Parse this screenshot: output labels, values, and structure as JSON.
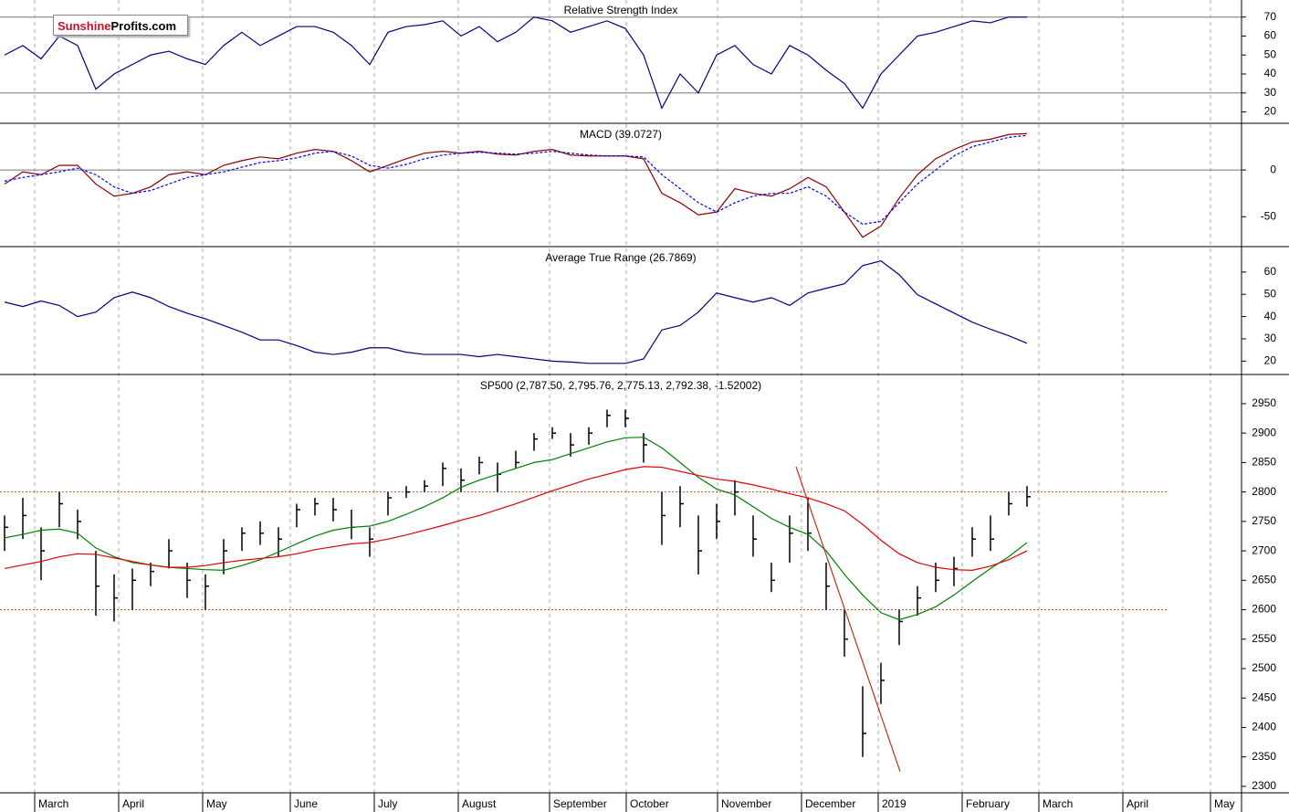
{
  "logo": {
    "brand": "Sunshine",
    "suffix": "Profits.com"
  },
  "chart_data": [
    {
      "type": "line",
      "title": "Relative Strength Index",
      "ylim": [
        14,
        79
      ],
      "yticks": [
        20,
        30,
        40,
        50,
        60,
        70
      ],
      "reference_lines": [
        70,
        30
      ],
      "series": [
        {
          "color": "#00007f",
          "values": [
            50,
            55,
            48,
            60,
            55,
            32,
            40,
            45,
            50,
            52,
            48,
            45,
            55,
            62,
            55,
            60,
            65,
            65,
            62,
            55,
            45,
            62,
            65,
            66,
            68,
            60,
            65,
            57,
            62,
            70,
            68,
            62,
            65,
            68,
            64,
            50,
            22,
            40,
            30,
            50,
            55,
            45,
            40,
            55,
            50,
            42,
            35,
            22,
            40,
            50,
            60,
            62,
            65,
            68,
            67,
            70,
            70
          ]
        }
      ]
    },
    {
      "type": "line",
      "title": "MACD (39.0727)",
      "ylim": [
        -82,
        49
      ],
      "yticks": [
        -50,
        0
      ],
      "reference_lines": [
        0
      ],
      "series": [
        {
          "color": "#8b0000",
          "values": [
            -15,
            -2,
            -5,
            5,
            5,
            -15,
            -28,
            -25,
            -18,
            -5,
            -2,
            -5,
            5,
            10,
            14,
            12,
            18,
            22,
            20,
            10,
            -2,
            5,
            12,
            18,
            20,
            18,
            20,
            17,
            16,
            20,
            22,
            16,
            15,
            15,
            15,
            12,
            -25,
            -35,
            -48,
            -45,
            -20,
            -25,
            -28,
            -20,
            -8,
            -18,
            -45,
            -72,
            -60,
            -30,
            -5,
            12,
            22,
            30,
            33,
            38,
            39
          ]
        },
        {
          "color": "#0000ff",
          "dashed": true,
          "values": [
            -12,
            -8,
            -5,
            -2,
            2,
            -5,
            -18,
            -25,
            -22,
            -15,
            -8,
            -5,
            -2,
            3,
            8,
            10,
            13,
            18,
            20,
            15,
            5,
            2,
            6,
            12,
            16,
            18,
            19,
            18,
            17,
            18,
            20,
            18,
            16,
            15,
            15,
            14,
            -5,
            -20,
            -35,
            -45,
            -35,
            -28,
            -25,
            -25,
            -18,
            -28,
            -45,
            -58,
            -55,
            -35,
            -15,
            0,
            15,
            25,
            30,
            35,
            37
          ]
        }
      ]
    },
    {
      "type": "line",
      "title": "Average True Range (26.7869)",
      "ylim": [
        14,
        71
      ],
      "yticks": [
        20,
        30,
        40,
        50,
        60
      ],
      "reference_lines": [],
      "series": [
        {
          "color": "#00007f",
          "values": [
            46.5,
            44.5,
            47,
            45,
            40,
            42,
            48.5,
            51,
            48.5,
            44.5,
            41.5,
            39,
            36,
            33,
            29.5,
            29.5,
            27,
            24,
            23,
            24,
            26,
            26,
            24,
            23,
            23,
            23,
            22,
            23,
            22,
            21,
            20,
            19.6,
            19,
            19,
            19,
            21,
            34,
            36,
            42,
            50.6,
            48.5,
            46.5,
            48.5,
            45,
            50.6,
            52.7,
            54.7,
            62.9,
            65,
            58.8,
            49.8,
            45.7,
            41.6,
            37.5,
            34.3,
            31.4,
            28
          ]
        }
      ]
    },
    {
      "type": "ohlc",
      "title": "SP500 (2,787.50, 2,795.76, 2,775.13, 2,792.38, -1.52002)",
      "ylim": [
        2289,
        2998
      ],
      "yticks": [
        2300,
        2350,
        2400,
        2450,
        2500,
        2550,
        2600,
        2650,
        2700,
        2750,
        2800,
        2850,
        2900,
        2950
      ],
      "reference_lines": [
        2800,
        2600
      ],
      "reference_color": "#c0502a",
      "trend_line": {
        "start": 2843,
        "end": 2325,
        "color": "#c0301a"
      },
      "high": [
        2760,
        2790,
        2740,
        2800,
        2770,
        2700,
        2660,
        2670,
        2680,
        2720,
        2680,
        2660,
        2720,
        2740,
        2750,
        2740,
        2780,
        2790,
        2790,
        2770,
        2740,
        2800,
        2810,
        2820,
        2850,
        2840,
        2860,
        2850,
        2870,
        2900,
        2910,
        2900,
        2910,
        2940,
        2940,
        2900,
        2800,
        2810,
        2760,
        2780,
        2820,
        2760,
        2680,
        2760,
        2790,
        2680,
        2600,
        2470,
        2510,
        2600,
        2640,
        2680,
        2690,
        2740,
        2760,
        2800,
        2810
      ],
      "low": [
        2700,
        2720,
        2650,
        2740,
        2720,
        2590,
        2580,
        2600,
        2640,
        2670,
        2620,
        2600,
        2660,
        2700,
        2710,
        2690,
        2740,
        2760,
        2750,
        2720,
        2690,
        2760,
        2790,
        2800,
        2810,
        2800,
        2830,
        2800,
        2840,
        2870,
        2890,
        2860,
        2880,
        2910,
        2910,
        2850,
        2710,
        2740,
        2660,
        2720,
        2760,
        2690,
        2630,
        2680,
        2700,
        2600,
        2520,
        2350,
        2440,
        2540,
        2590,
        2630,
        2640,
        2690,
        2700,
        2760,
        2775
      ],
      "close": [
        2740,
        2760,
        2700,
        2780,
        2750,
        2640,
        2620,
        2650,
        2665,
        2700,
        2650,
        2640,
        2700,
        2730,
        2730,
        2720,
        2770,
        2780,
        2770,
        2740,
        2720,
        2790,
        2800,
        2810,
        2840,
        2820,
        2850,
        2830,
        2850,
        2890,
        2900,
        2880,
        2900,
        2930,
        2925,
        2880,
        2760,
        2780,
        2700,
        2750,
        2800,
        2720,
        2650,
        2730,
        2730,
        2640,
        2550,
        2390,
        2480,
        2580,
        2620,
        2650,
        2670,
        2720,
        2720,
        2780,
        2792
      ],
      "series": [
        {
          "color": "#008000",
          "values": [
            2722,
            2728,
            2735,
            2737,
            2730,
            2705,
            2690,
            2680,
            2676,
            2672,
            2670,
            2668,
            2667,
            2675,
            2685,
            2698,
            2712,
            2725,
            2735,
            2740,
            2742,
            2750,
            2762,
            2775,
            2790,
            2808,
            2820,
            2830,
            2840,
            2850,
            2855,
            2865,
            2875,
            2885,
            2892,
            2893,
            2875,
            2850,
            2825,
            2805,
            2795,
            2775,
            2755,
            2740,
            2728,
            2700,
            2660,
            2625,
            2595,
            2583,
            2592,
            2605,
            2625,
            2648,
            2670,
            2690,
            2714
          ]
        },
        {
          "color": "#e00000",
          "values": [
            2670,
            2676,
            2682,
            2690,
            2695,
            2694,
            2688,
            2682,
            2676,
            2672,
            2672,
            2675,
            2680,
            2684,
            2687,
            2690,
            2695,
            2702,
            2707,
            2712,
            2714,
            2720,
            2727,
            2735,
            2743,
            2752,
            2760,
            2770,
            2780,
            2791,
            2802,
            2812,
            2822,
            2830,
            2838,
            2843,
            2842,
            2835,
            2828,
            2822,
            2818,
            2812,
            2805,
            2797,
            2790,
            2780,
            2768,
            2745,
            2718,
            2695,
            2680,
            2672,
            2668,
            2667,
            2674,
            2685,
            2700
          ]
        }
      ],
      "x_labels": [
        "March",
        "April",
        "May",
        "June",
        "July",
        "August",
        "September",
        "October",
        "November",
        "December",
        "2019",
        "February",
        "March",
        "April",
        "May"
      ]
    }
  ]
}
